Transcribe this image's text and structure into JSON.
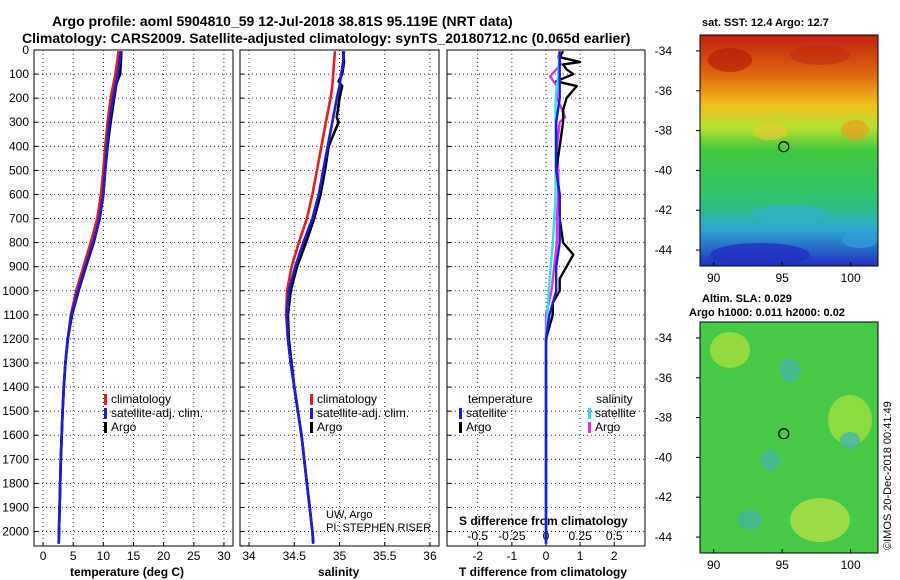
{
  "title": {
    "line1": "Argo profile: aoml 5904810_59 12-Jul-2018 38.81S 95.119E (NRT data)",
    "line2": "Climatology: CARS2009. Satellite-adjusted climatology: synTS_20180712.nc (0.065d earlier)"
  },
  "colors": {
    "climatology": "#e02020",
    "satellite": "#1c1cd8",
    "argo": "#000000",
    "sal_satellite": "#30e0f0",
    "sal_argo": "#e030e0"
  },
  "depth_axis": {
    "ticks": [
      "0",
      "100",
      "200",
      "300",
      "400",
      "500",
      "600",
      "700",
      "800",
      "900",
      "1000",
      "1100",
      "1200",
      "1300",
      "1400",
      "1500",
      "1600",
      "1700",
      "1800",
      "1900",
      "2000"
    ],
    "range": [
      0,
      2060
    ]
  },
  "chart_data": [
    {
      "type": "line",
      "name": "temperature",
      "xlabel": "temperature (deg C)",
      "xticks": [
        "0",
        "5",
        "10",
        "15",
        "20",
        "25",
        "30"
      ],
      "xlim": [
        -1.5,
        31.5
      ],
      "ylim": [
        2060,
        0
      ],
      "legend": [
        "climatology",
        "satellite-adj. clim.",
        "Argo"
      ],
      "series": [
        {
          "name": "climatology",
          "depth": [
            5,
            50,
            100,
            150,
            200,
            300,
            400,
            500,
            600,
            700,
            800,
            900,
            1000,
            1100,
            1200,
            1300,
            1400,
            1500,
            1600,
            1700,
            1800,
            1900,
            2000,
            2050
          ],
          "values": [
            12.5,
            12.3,
            12.0,
            11.6,
            11.2,
            10.7,
            10.3,
            10.0,
            9.6,
            9.0,
            7.9,
            6.7,
            5.5,
            4.6,
            4.1,
            3.7,
            3.45,
            3.25,
            3.1,
            2.95,
            2.85,
            2.75,
            2.65,
            2.6
          ]
        },
        {
          "name": "satellite-adj. clim.",
          "depth": [
            5,
            50,
            100,
            150,
            200,
            300,
            400,
            500,
            600,
            700,
            800,
            900,
            1000,
            1100,
            1200,
            1300,
            1400,
            1500,
            1600,
            1700,
            1800,
            1900,
            2000,
            2050
          ],
          "values": [
            12.9,
            12.7,
            12.4,
            12.0,
            11.6,
            11.0,
            10.6,
            10.3,
            10.0,
            9.4,
            8.3,
            7.0,
            5.8,
            4.7,
            4.1,
            3.7,
            3.45,
            3.25,
            3.1,
            2.95,
            2.85,
            2.75,
            2.65,
            2.6
          ]
        },
        {
          "name": "Argo",
          "depth": [
            5,
            50,
            100,
            130,
            150,
            200,
            300,
            400,
            500,
            600,
            700,
            800,
            900,
            1000,
            1100,
            1200,
            1300,
            1400,
            1500,
            1600,
            1700,
            1800,
            1900,
            2000,
            2050
          ],
          "values": [
            13.0,
            12.9,
            12.8,
            12.3,
            12.1,
            11.8,
            11.2,
            10.7,
            10.3,
            10.0,
            9.4,
            8.4,
            7.1,
            5.9,
            4.8,
            4.1,
            3.7,
            3.45,
            3.25,
            3.1,
            2.95,
            2.85,
            2.75,
            2.65,
            2.6
          ]
        }
      ]
    },
    {
      "type": "line",
      "name": "salinity",
      "xlabel": "salinity",
      "xticks": [
        "34",
        "34.5",
        "35",
        "35.5",
        "36"
      ],
      "xlim": [
        33.9,
        36.1
      ],
      "ylim": [
        2060,
        0
      ],
      "legend": [
        "climatology",
        "satellite-adj. clim.",
        "Argo"
      ],
      "series": [
        {
          "name": "climatology",
          "depth": [
            5,
            50,
            100,
            150,
            200,
            300,
            400,
            500,
            600,
            700,
            800,
            900,
            1000,
            1100,
            1200,
            1300,
            1400,
            1500,
            1600,
            1700,
            1800,
            1900,
            2000,
            2050
          ],
          "values": [
            34.95,
            34.94,
            34.93,
            34.92,
            34.9,
            34.85,
            34.8,
            34.75,
            34.7,
            34.64,
            34.55,
            34.47,
            34.42,
            34.41,
            34.43,
            34.46,
            34.5,
            34.54,
            34.58,
            34.61,
            34.64,
            34.67,
            34.7,
            34.71
          ]
        },
        {
          "name": "satellite-adj. clim.",
          "depth": [
            5,
            50,
            100,
            150,
            200,
            300,
            400,
            500,
            600,
            700,
            800,
            900,
            1000,
            1100,
            1200,
            1300,
            1400,
            1500,
            1600,
            1700,
            1800,
            1900,
            2000,
            2050
          ],
          "values": [
            35.05,
            35.04,
            35.02,
            35.0,
            34.97,
            34.92,
            34.87,
            34.82,
            34.77,
            34.7,
            34.6,
            34.51,
            34.44,
            34.42,
            34.43,
            34.46,
            34.5,
            34.54,
            34.58,
            34.61,
            34.64,
            34.67,
            34.7,
            34.71
          ]
        },
        {
          "name": "Argo",
          "depth": [
            5,
            50,
            100,
            130,
            150,
            200,
            280,
            300,
            400,
            500,
            600,
            700,
            800,
            900,
            1000,
            1100,
            1200,
            1300,
            1400,
            1500,
            1600,
            1700,
            1800,
            1900,
            2000,
            2050
          ],
          "values": [
            35.04,
            35.05,
            35.03,
            34.99,
            35.03,
            35.0,
            34.97,
            34.99,
            34.88,
            34.84,
            34.79,
            34.72,
            34.63,
            34.53,
            34.46,
            34.43,
            34.44,
            34.47,
            34.5,
            34.54,
            34.58,
            34.61,
            34.64,
            34.67,
            34.7,
            34.71
          ]
        }
      ]
    },
    {
      "type": "line",
      "name": "differences",
      "xlabel": "T difference from climatology",
      "xlabel_top": "S difference from climatology",
      "xticks": [
        "-2",
        "-1",
        "0",
        "1",
        "2"
      ],
      "xticks_top": [
        "-0.5",
        "-0.25",
        "0",
        "0.25",
        "0.5"
      ],
      "xlim": [
        -2.9,
        2.9
      ],
      "ylim": [
        2060,
        0
      ],
      "legend_left_title": "temperature",
      "legend_right_title": "salinity",
      "legend_left": [
        "satellite",
        "Argo"
      ],
      "legend_right": [
        "satellite",
        "Argo"
      ],
      "series": [
        {
          "name": "temperature satellite",
          "depth": [
            5,
            100,
            200,
            300,
            400,
            500,
            600,
            700,
            800,
            900,
            1000,
            1100,
            1200,
            1400,
            1600,
            1800,
            2000,
            2050
          ],
          "values": [
            0.4,
            0.4,
            0.4,
            0.3,
            0.3,
            0.3,
            0.4,
            0.4,
            0.4,
            0.3,
            0.3,
            0.1,
            0.0,
            0.0,
            0.0,
            0.0,
            0.0,
            0.0
          ]
        },
        {
          "name": "temperature Argo",
          "depth": [
            5,
            30,
            50,
            60,
            80,
            100,
            130,
            150,
            200,
            250,
            300,
            400,
            500,
            600,
            700,
            800,
            850,
            900,
            950,
            1000,
            1050,
            1100,
            1200,
            1400,
            1600,
            1800,
            2000,
            2050
          ],
          "values": [
            0.5,
            0.4,
            1.0,
            0.5,
            0.6,
            0.8,
            0.3,
            0.9,
            0.6,
            0.5,
            0.5,
            0.4,
            0.3,
            0.4,
            0.4,
            0.5,
            0.8,
            0.6,
            0.4,
            0.4,
            0.2,
            0.2,
            0.0,
            0.0,
            0.0,
            0.0,
            0.0,
            0.0
          ]
        },
        {
          "name": "salinity satellite",
          "depth": [
            5,
            100,
            200,
            300,
            400,
            500,
            600,
            700,
            800,
            1000,
            1200,
            1400,
            1600,
            1800,
            2000,
            2050
          ],
          "values": [
            0.1,
            0.09,
            0.07,
            0.07,
            0.07,
            0.07,
            0.07,
            0.06,
            0.05,
            0.02,
            0.0,
            0.0,
            0.0,
            0.0,
            0.0,
            0.0
          ]
        },
        {
          "name": "salinity Argo",
          "depth": [
            5,
            30,
            60,
            90,
            110,
            150,
            200,
            250,
            280,
            300,
            400,
            500,
            600,
            700,
            800,
            900,
            1000,
            1100,
            1200,
            1400,
            1600,
            1800,
            2000,
            2050
          ],
          "values": [
            0.1,
            0.09,
            0.11,
            0.06,
            0.03,
            0.08,
            0.08,
            0.12,
            0.14,
            0.1,
            0.08,
            0.09,
            0.09,
            0.08,
            0.08,
            0.06,
            0.04,
            0.0,
            0.0,
            0.0,
            0.0,
            0.0,
            0.0,
            0.0
          ]
        }
      ]
    },
    {
      "type": "heatmap",
      "name": "sat-sst-map",
      "title": "sat. SST: 12.4 Argo: 12.7",
      "xticks": [
        "90",
        "95",
        "100"
      ],
      "yticks": [
        "-34",
        "-36",
        "-38",
        "-40",
        "-42",
        "-44"
      ],
      "xlim": [
        89,
        102
      ],
      "ylim": [
        -44.8,
        -33.2
      ],
      "profile_location": {
        "lon": 95.119,
        "lat": -38.81
      }
    },
    {
      "type": "heatmap",
      "name": "altim-sla-map",
      "title": "Altim. SLA: 0.029",
      "subtitle": "Argo h1000: 0.011 h2000: 0.02",
      "xticks": [
        "90",
        "95",
        "100"
      ],
      "yticks": [
        "-34",
        "-36",
        "-38",
        "-40",
        "-42",
        "-44"
      ],
      "xlim": [
        89,
        102
      ],
      "ylim": [
        -44.8,
        -33.2
      ],
      "profile_location": {
        "lon": 95.119,
        "lat": -38.81
      }
    }
  ],
  "credits": {
    "line1": "UW, Argo",
    "line2": "PI: STEPHEN RISER",
    "imos": "©IMOS 20-Dec-2018 00:41:49"
  }
}
